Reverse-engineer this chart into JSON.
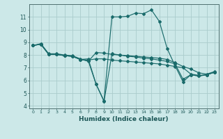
{
  "xlabel": "Humidex (Indice chaleur)",
  "bg_color": "#cce8e8",
  "grid_color": "#aacccc",
  "line_color": "#1a6b6b",
  "xlim": [
    -0.5,
    23.5
  ],
  "ylim": [
    3.8,
    12.0
  ],
  "xticks": [
    0,
    1,
    2,
    3,
    4,
    5,
    6,
    7,
    8,
    9,
    10,
    11,
    12,
    13,
    14,
    15,
    16,
    17,
    18,
    19,
    20,
    21,
    22,
    23
  ],
  "yticks": [
    4,
    5,
    6,
    7,
    8,
    9,
    10,
    11
  ],
  "line1_x": [
    0,
    1,
    2,
    3,
    4,
    5,
    6,
    7,
    8,
    9,
    10,
    11,
    12,
    13,
    14,
    15,
    16,
    17,
    18,
    19,
    20,
    21,
    22,
    23
  ],
  "line1_y": [
    8.75,
    8.9,
    8.1,
    8.1,
    8.0,
    7.95,
    7.7,
    7.5,
    8.2,
    8.15,
    8.05,
    8.0,
    7.95,
    7.9,
    7.85,
    7.8,
    7.75,
    7.65,
    7.4,
    7.1,
    6.9,
    6.6,
    6.5,
    6.7
  ],
  "line2_x": [
    0,
    1,
    2,
    3,
    4,
    5,
    6,
    7,
    8,
    9,
    10,
    11,
    12,
    13,
    14,
    15,
    16,
    17,
    18,
    19,
    20,
    21,
    22,
    23
  ],
  "line2_y": [
    8.75,
    8.85,
    8.05,
    8.05,
    7.95,
    7.9,
    7.65,
    7.55,
    5.7,
    4.4,
    11.0,
    11.0,
    11.05,
    11.3,
    11.25,
    11.55,
    10.65,
    8.5,
    7.15,
    5.9,
    6.45,
    6.35,
    6.45,
    6.65
  ],
  "line3_x": [
    0,
    1,
    2,
    3,
    4,
    5,
    6,
    7,
    8,
    9,
    10,
    11,
    12,
    13,
    14,
    15,
    16,
    17,
    18,
    19,
    20,
    21,
    22,
    23
  ],
  "line3_y": [
    8.75,
    8.85,
    8.05,
    8.05,
    7.95,
    7.9,
    7.65,
    7.7,
    5.7,
    4.35,
    8.1,
    8.0,
    7.9,
    7.85,
    7.75,
    7.7,
    7.6,
    7.5,
    7.3,
    6.1,
    6.45,
    6.35,
    6.45,
    6.65
  ],
  "line4_x": [
    0,
    1,
    2,
    3,
    4,
    5,
    6,
    7,
    8,
    9,
    10,
    11,
    12,
    13,
    14,
    15,
    16,
    17,
    18,
    19,
    20,
    21,
    22,
    23
  ],
  "line4_y": [
    8.75,
    8.85,
    8.05,
    8.05,
    7.95,
    7.9,
    7.65,
    7.6,
    7.7,
    7.7,
    7.6,
    7.55,
    7.5,
    7.45,
    7.4,
    7.35,
    7.3,
    7.2,
    7.1,
    7.0,
    6.5,
    6.4,
    6.45,
    6.65
  ]
}
